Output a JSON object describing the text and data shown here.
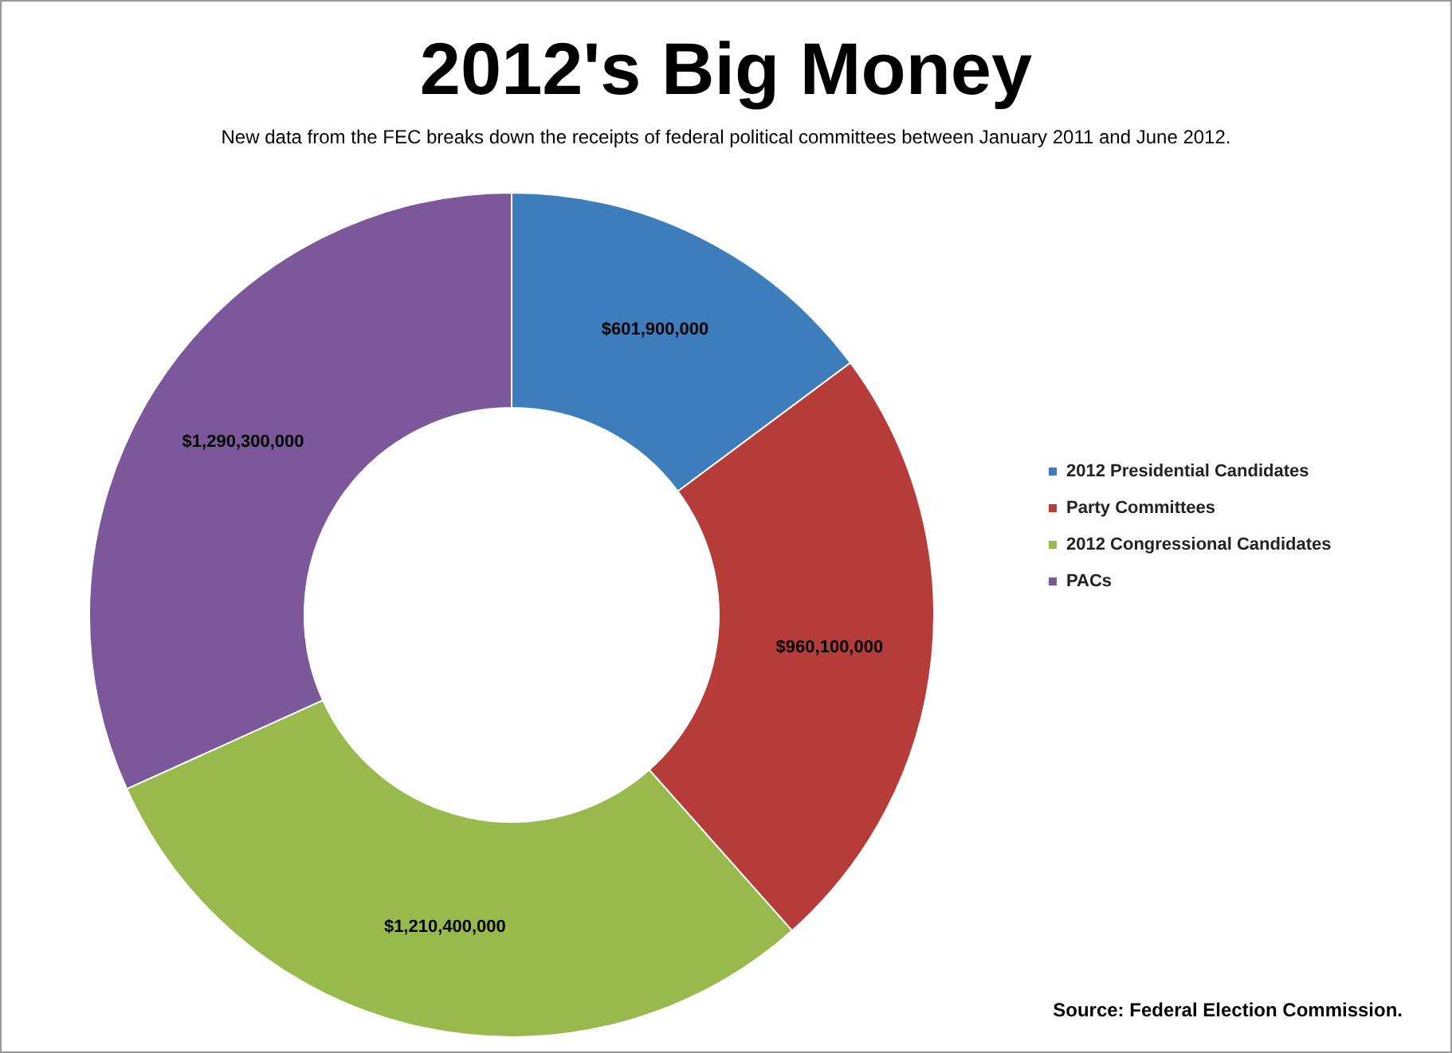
{
  "chart_data": {
    "type": "donut",
    "title": "2012's Big Money",
    "subtitle": "New data from the FEC breaks down the receipts of federal political committees between January 2011 and June 2012.",
    "categories": [
      "2012 Presidential Candidates",
      "Party Committees",
      "2012 Congressional Candidates",
      "PACs"
    ],
    "values": [
      601900000,
      960100000,
      1210400000,
      1290300000
    ],
    "colors": [
      "#3d7dbc",
      "#b63c3a",
      "#98b94b",
      "#7c589b"
    ],
    "value_labels": [
      "$601,900,000",
      "$960,100,000",
      "$1,210,400,000",
      "$1,290,300,000"
    ],
    "legend": "right",
    "annotations": [
      "Source: Federal Election Commission."
    ]
  }
}
